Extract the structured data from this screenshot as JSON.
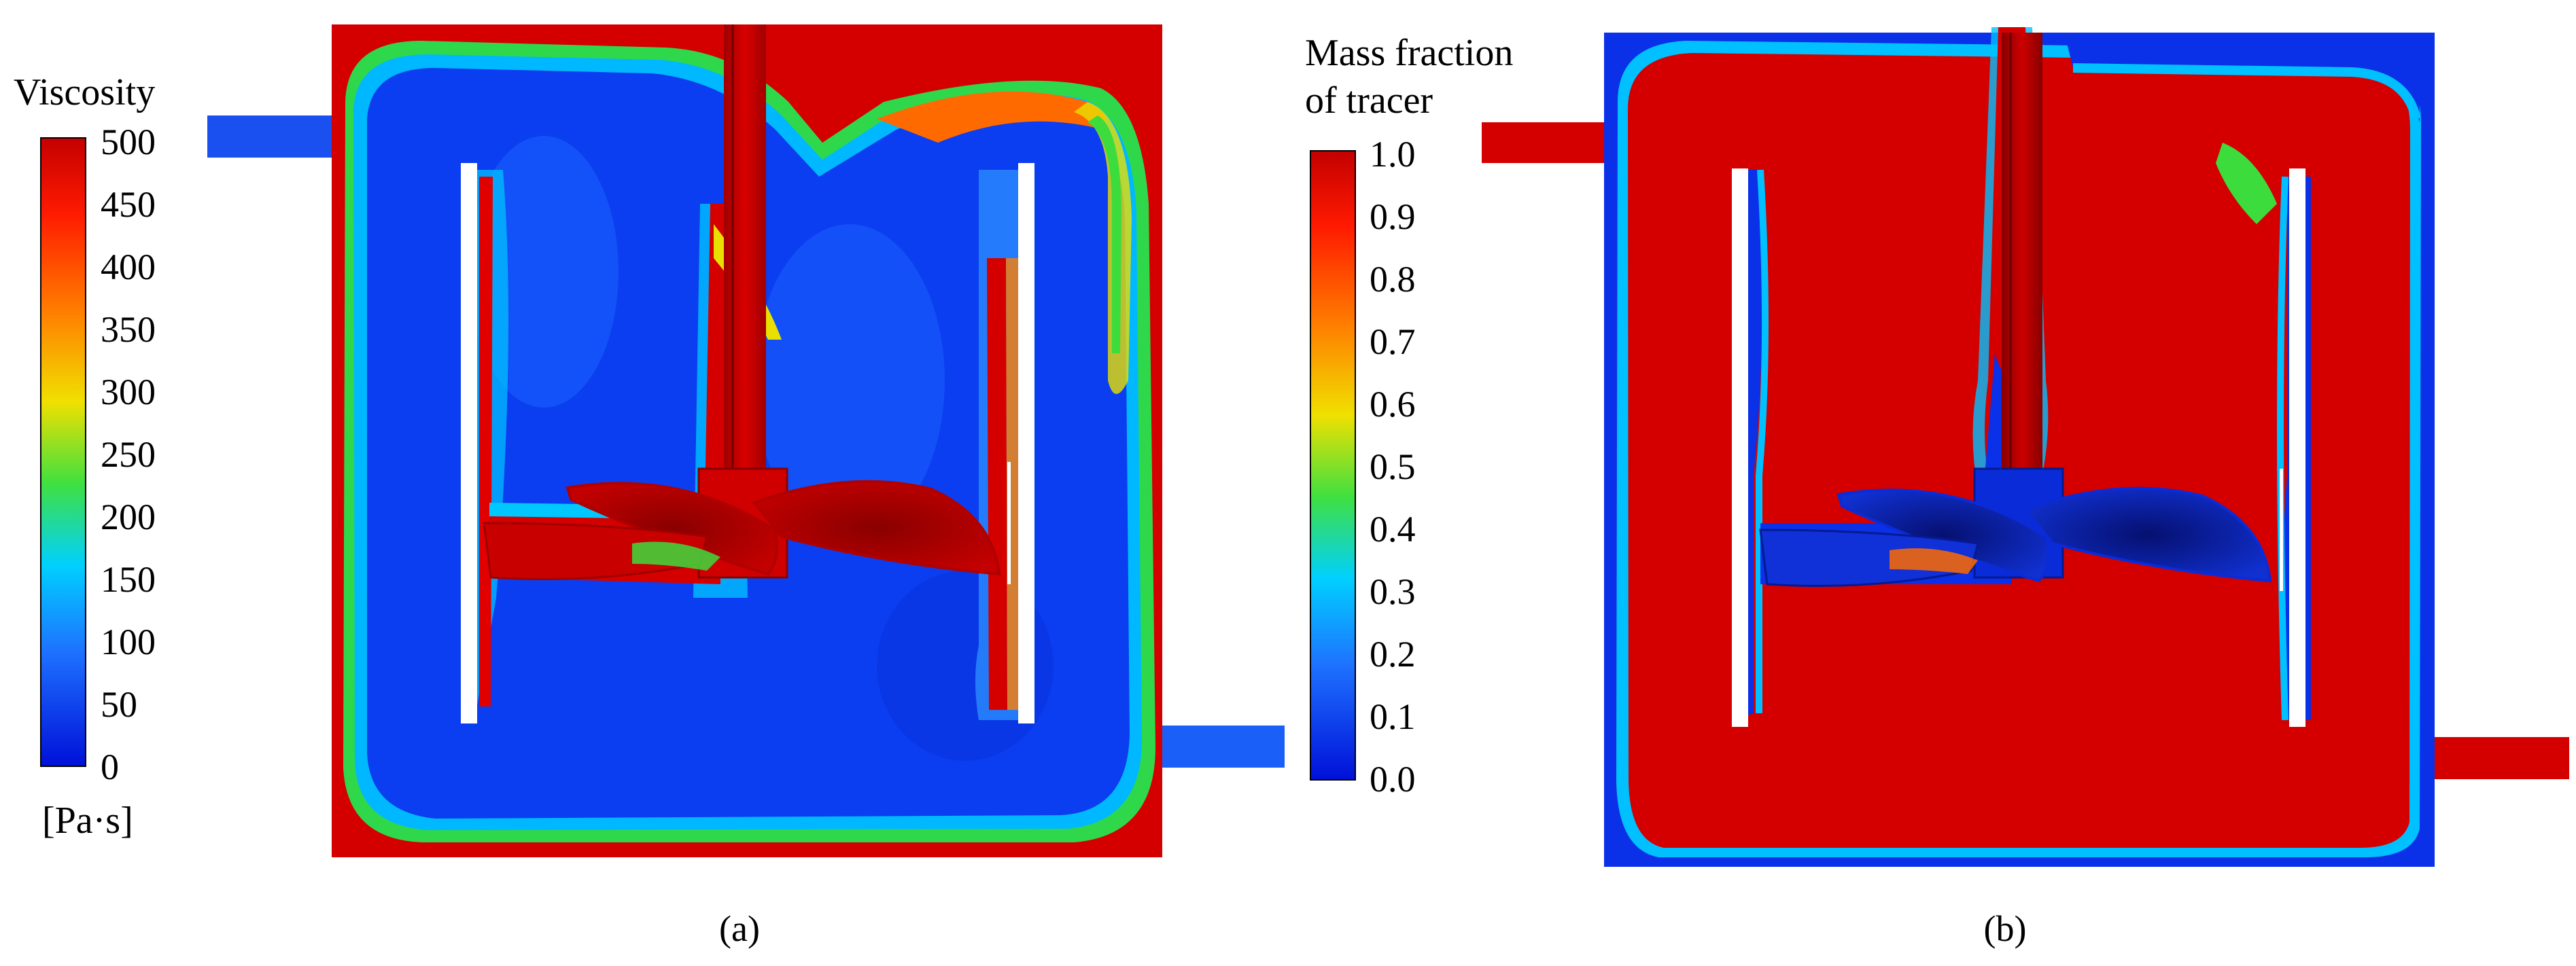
{
  "figure": {
    "panel_a": {
      "legend_title": "Viscosity",
      "unit": "[Pa·s]",
      "ticks": [
        "500",
        "450",
        "400",
        "350",
        "300",
        "250",
        "200",
        "150",
        "100",
        "50",
        "0"
      ],
      "caption": "(a)"
    },
    "panel_b": {
      "legend_title_line1": "Mass fraction",
      "legend_title_line2": "of tracer",
      "ticks": [
        "1.0",
        "0.9",
        "0.8",
        "0.7",
        "0.6",
        "0.5",
        "0.4",
        "0.3",
        "0.2",
        "0.1",
        "0.0"
      ],
      "caption": "(b)"
    },
    "colors": {
      "red": "#d40000",
      "dark_red": "#7a0000",
      "blue": "#0a3cf0",
      "light_blue": "#1f7bff",
      "cyan": "#00c8ff",
      "green": "#3cdc3c",
      "yellow": "#f0e000",
      "orange": "#ff7a00",
      "navy": "#081a8a",
      "white": "#ffffff"
    }
  }
}
